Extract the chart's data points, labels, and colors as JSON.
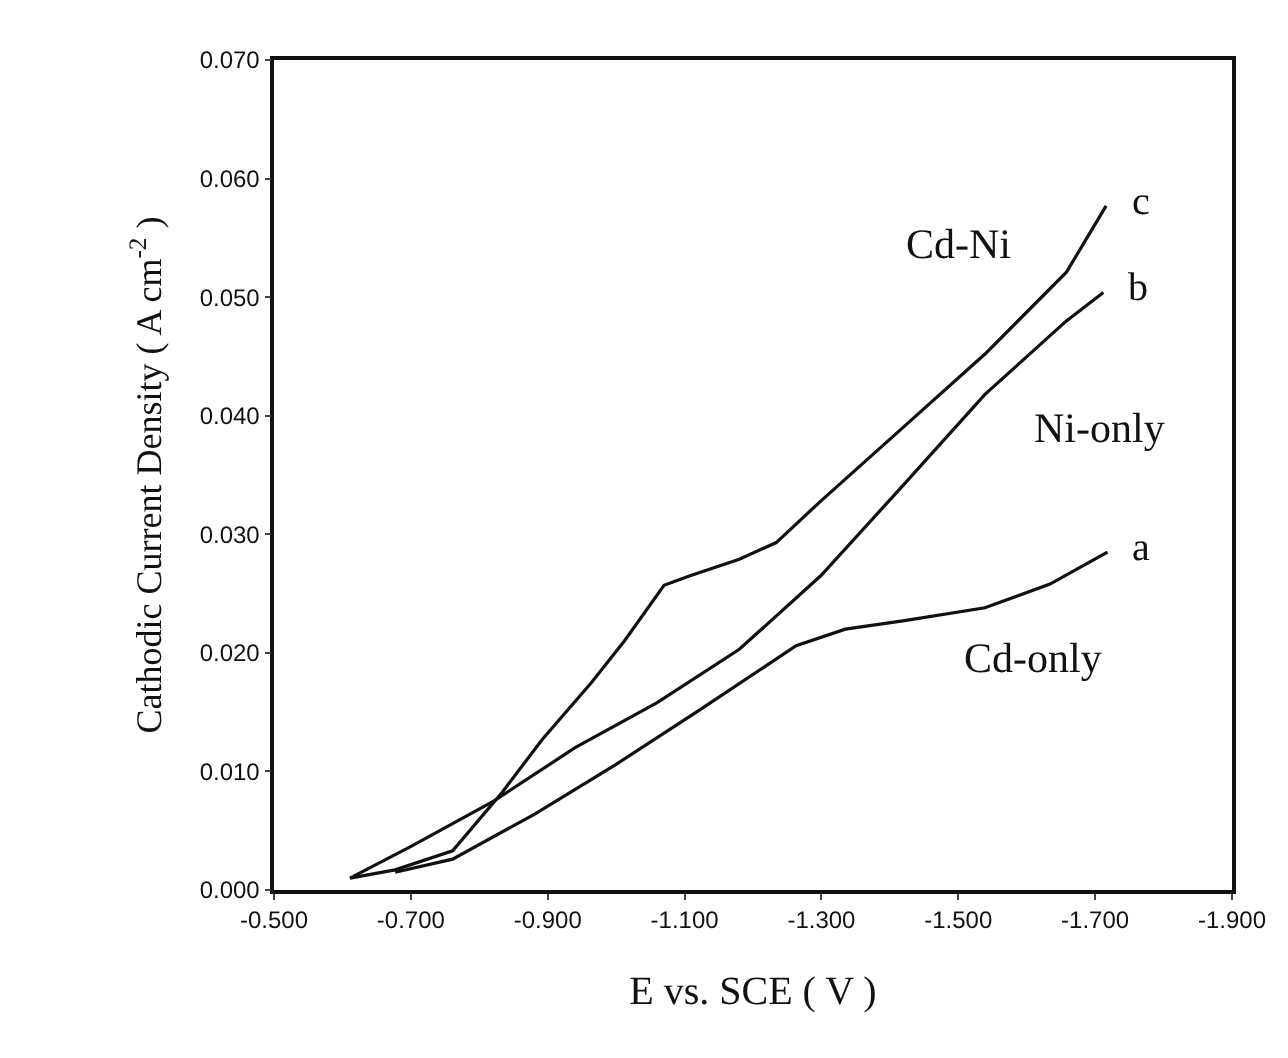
{
  "chart_data": {
    "type": "line",
    "xlabel": "E vs. SCE ( V )",
    "ylabel": "Cathodic Current Density ( A cm$^{-2}$ )",
    "xlim": [
      -0.5,
      -1.9
    ],
    "xticks": [
      {
        "value": -0.5,
        "label": "-0.500"
      },
      {
        "value": -0.7,
        "label": "-0.700"
      },
      {
        "value": -0.9,
        "label": "-0.900"
      },
      {
        "value": -1.1,
        "label": "-1.100"
      },
      {
        "value": -1.3,
        "label": "-1.300"
      },
      {
        "value": -1.5,
        "label": "-1.500"
      },
      {
        "value": -1.7,
        "label": "-1.700"
      },
      {
        "value": -1.9,
        "label": "-1.900"
      }
    ],
    "ylim": [
      0,
      0.07
    ],
    "yticks": [
      {
        "value": 0,
        "label": "0.000"
      },
      {
        "value": 0.01,
        "label": "0.010"
      },
      {
        "value": 0.02,
        "label": "0.020"
      },
      {
        "value": 0.03,
        "label": "0.030"
      },
      {
        "value": 0.04,
        "label": "0.040"
      },
      {
        "value": 0.05,
        "label": "0.050"
      },
      {
        "value": 0.06,
        "label": "0.060"
      },
      {
        "value": 0.07,
        "label": "0.070"
      }
    ],
    "grid": false,
    "legend": false,
    "marker": "none",
    "line_style": "solid",
    "series": [
      {
        "name": "Cd-Ni",
        "color": "#111111",
        "x": [
          -0.611,
          -0.677,
          -0.761,
          -0.833,
          -0.892,
          -0.964,
          -1.012,
          -1.07,
          -1.108,
          -1.18,
          -1.234,
          -1.299,
          -1.419,
          -1.539,
          -1.658,
          -1.716
        ],
        "values": [
          0.001,
          0.0017,
          0.0033,
          0.0082,
          0.0127,
          0.0175,
          0.021,
          0.0257,
          0.0265,
          0.0279,
          0.0293,
          0.0328,
          0.039,
          0.0452,
          0.0521,
          0.0577
        ]
      },
      {
        "name": "Ni-only",
        "color": "#111111",
        "x": [
          -0.611,
          -0.701,
          -0.821,
          -0.94,
          -1.06,
          -1.18,
          -1.299,
          -1.419,
          -1.539,
          -1.658,
          -1.712
        ],
        "values": [
          0.001,
          0.0037,
          0.0075,
          0.012,
          0.0158,
          0.0203,
          0.0265,
          0.0341,
          0.0418,
          0.048,
          0.0504
        ]
      },
      {
        "name": "Cd-only",
        "color": "#111111",
        "x": [
          -0.677,
          -0.761,
          -0.881,
          -1.0,
          -1.12,
          -1.263,
          -1.335,
          -1.419,
          -1.539,
          -1.634,
          -1.718
        ],
        "values": [
          0.0015,
          0.0026,
          0.0064,
          0.0106,
          0.0151,
          0.0206,
          0.022,
          0.0227,
          0.0238,
          0.0258,
          0.0285
        ]
      }
    ],
    "annotations": [
      "c",
      "b",
      "a"
    ]
  }
}
